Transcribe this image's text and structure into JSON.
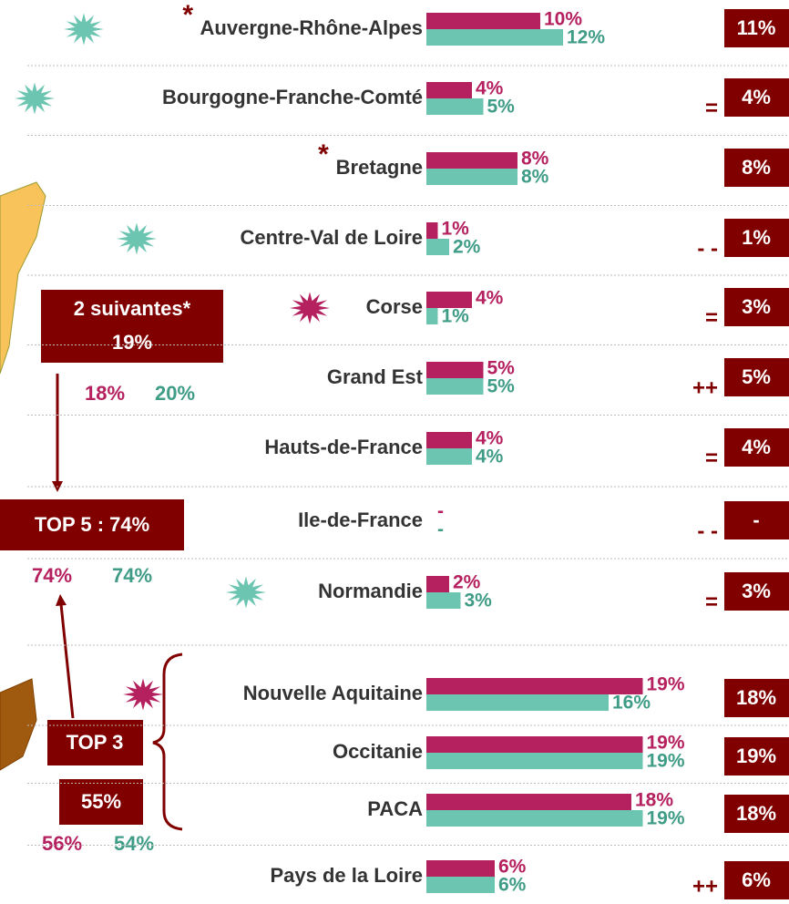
{
  "chart_data": {
    "type": "bar",
    "orientation": "horizontal",
    "categories": [
      "Auvergne-Rhône-Alpes",
      "Bourgogne-Franche-Comté",
      "Bretagne",
      "Centre-Val de Loire",
      "Corse",
      "Grand Est",
      "Hauts-de-France",
      "Ile-de-France",
      "Normandie",
      "Nouvelle Aquitaine",
      "Occitanie",
      "PACA",
      "Pays de la Loire"
    ],
    "footnote_marks": [
      "*",
      null,
      "*",
      null,
      null,
      null,
      null,
      null,
      null,
      null,
      null,
      null,
      null
    ],
    "series": [
      {
        "color": "#b5205f",
        "values": [
          10,
          4,
          8,
          1,
          4,
          5,
          4,
          null,
          2,
          19,
          19,
          18,
          6
        ],
        "value_labels": [
          "10%",
          "4%",
          "8%",
          "1%",
          "4%",
          "5%",
          "4%",
          "-",
          "2%",
          "19%",
          "19%",
          "18%",
          "6%"
        ]
      },
      {
        "color": "#6cc5b0",
        "values": [
          12,
          5,
          8,
          2,
          1,
          5,
          4,
          null,
          3,
          16,
          19,
          19,
          6
        ],
        "value_labels": [
          "12%",
          "5%",
          "8%",
          "2%",
          "1%",
          "5%",
          "4%",
          "-",
          "3%",
          "16%",
          "19%",
          "19%",
          "6%"
        ]
      }
    ],
    "totals": [
      11,
      4,
      8,
      1,
      3,
      5,
      4,
      null,
      3,
      18,
      19,
      18,
      6
    ],
    "total_labels": [
      "11%",
      "4%",
      "8%",
      "1%",
      "3%",
      "5%",
      "4%",
      "-",
      "3%",
      "18%",
      "19%",
      "18%",
      "6%"
    ],
    "trends": [
      null,
      "=",
      null,
      "- -",
      "=",
      "++",
      "=",
      "- -",
      "=",
      null,
      null,
      null,
      "++"
    ],
    "annotations": {
      "next2": {
        "title": "2 suivantes*",
        "total": "19%",
        "a": "18%",
        "b": "20%"
      },
      "top5": {
        "title": "TOP 5 : 74%",
        "a": "74%",
        "b": "74%"
      },
      "top3": {
        "title": "TOP 3",
        "total": "55%",
        "a": "56%",
        "b": "54%"
      }
    }
  }
}
